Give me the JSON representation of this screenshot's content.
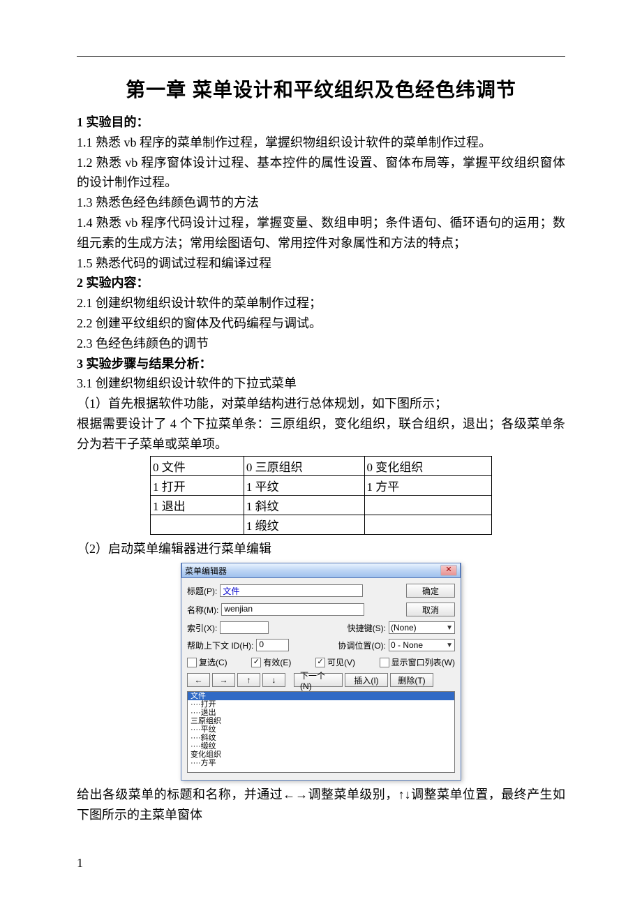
{
  "title": "第一章 菜单设计和平纹组织及色经色纬调节",
  "section1_heading": "1 实验目的：",
  "s1_1": "1.1 熟悉 vb 程序的菜单制作过程，掌握织物组织设计软件的菜单制作过程。",
  "s1_2": "1.2 熟悉 vb 程序窗体设计过程、基本控件的属性设置、窗体布局等，掌握平纹组织窗体的设计制作过程。",
  "s1_3": "1.3 熟悉色经色纬颜色调节的方法",
  "s1_4": "1.4 熟悉 vb 程序代码设计过程，掌握变量、数组申明；条件语句、循环语句的运用；数组元素的生成方法；常用绘图语句、常用控件对象属性和方法的特点；",
  "s1_5": "1.5 熟悉代码的调试过程和编译过程",
  "section2_heading": "2 实验内容：",
  "s2_1": "2.1 创建织物组织设计软件的菜单制作过程；",
  "s2_2": "2.2 创建平纹组织的窗体及代码编程与调试。",
  "s2_3": "2.3 色经色纬颜色的调节",
  "section3_heading": "3 实验步骤与结果分析：",
  "s3_1": "3.1 创建织物组织设计软件的下拉式菜单",
  "s3_1_1": "（1）首先根据软件功能，对菜单结构进行总体规划，如下图所示；",
  "s3_1_desc": "根据需要设计了 4 个下拉菜单条：三原组织，变化组织，联合组织，退出；各级菜单条分为若干子菜单或菜单项。",
  "s3_1_2": "（2）启动菜单编辑器进行菜单编辑",
  "after_dialog": "给出各级菜单的标题和名称，并通过←→调整菜单级别，↑↓调整菜单位置，最终产生如下图所示的主菜单窗体",
  "page_number": "1",
  "menu_table": {
    "columns": [
      "c1",
      "c2",
      "c3"
    ],
    "rows": [
      [
        "0 文件",
        "0 三原组织",
        "0 变化组织"
      ],
      [
        "1 打开",
        "1 平纹",
        "1 方平"
      ],
      [
        "1 退出",
        "1 斜纹",
        ""
      ],
      [
        "",
        "1 缎纹",
        ""
      ]
    ],
    "border_color": "#000000",
    "font_size": 17
  },
  "dialog": {
    "title": "菜单编辑器",
    "close_glyph": "✕",
    "caption_label": "标题(P):",
    "caption_value": "文件",
    "name_label": "名称(M):",
    "name_value": "wenjian",
    "index_label": "索引(X):",
    "index_value": "",
    "shortcut_label": "快捷键(S):",
    "shortcut_value": "(None)",
    "helpctx_label": "帮助上下文 ID(H):",
    "helpctx_value": "0",
    "negotiate_label": "协调位置(O):",
    "negotiate_value": "0 - None",
    "chk_checked_label": "复选(C)",
    "chk_checked_val": false,
    "chk_enabled_label": "有效(E)",
    "chk_enabled_val": true,
    "chk_visible_label": "可见(V)",
    "chk_visible_val": true,
    "chk_windowlist_label": "显示窗口列表(W)",
    "chk_windowlist_val": false,
    "btn_ok": "确定",
    "btn_cancel": "取消",
    "arrow_left": "←",
    "arrow_right": "→",
    "arrow_up": "↑",
    "arrow_down": "↓",
    "btn_next": "下一个(N)",
    "btn_insert": "插入(I)",
    "btn_delete": "删除(T)",
    "listbox_items": [
      {
        "text": "文件",
        "selected": true
      },
      {
        "text": "····打开",
        "selected": false
      },
      {
        "text": "····退出",
        "selected": false
      },
      {
        "text": "三原组织",
        "selected": false
      },
      {
        "text": "····平纹",
        "selected": false
      },
      {
        "text": "····斜纹",
        "selected": false
      },
      {
        "text": "····缎纹",
        "selected": false
      },
      {
        "text": "变化组织",
        "selected": false
      },
      {
        "text": "····方平",
        "selected": false
      }
    ],
    "colors": {
      "titlebar_start": "#eaf3fe",
      "titlebar_end": "#9ec0ed",
      "border": "#5a7dbb",
      "selection_bg": "#316ac5",
      "selection_fg": "#ffffff"
    }
  }
}
